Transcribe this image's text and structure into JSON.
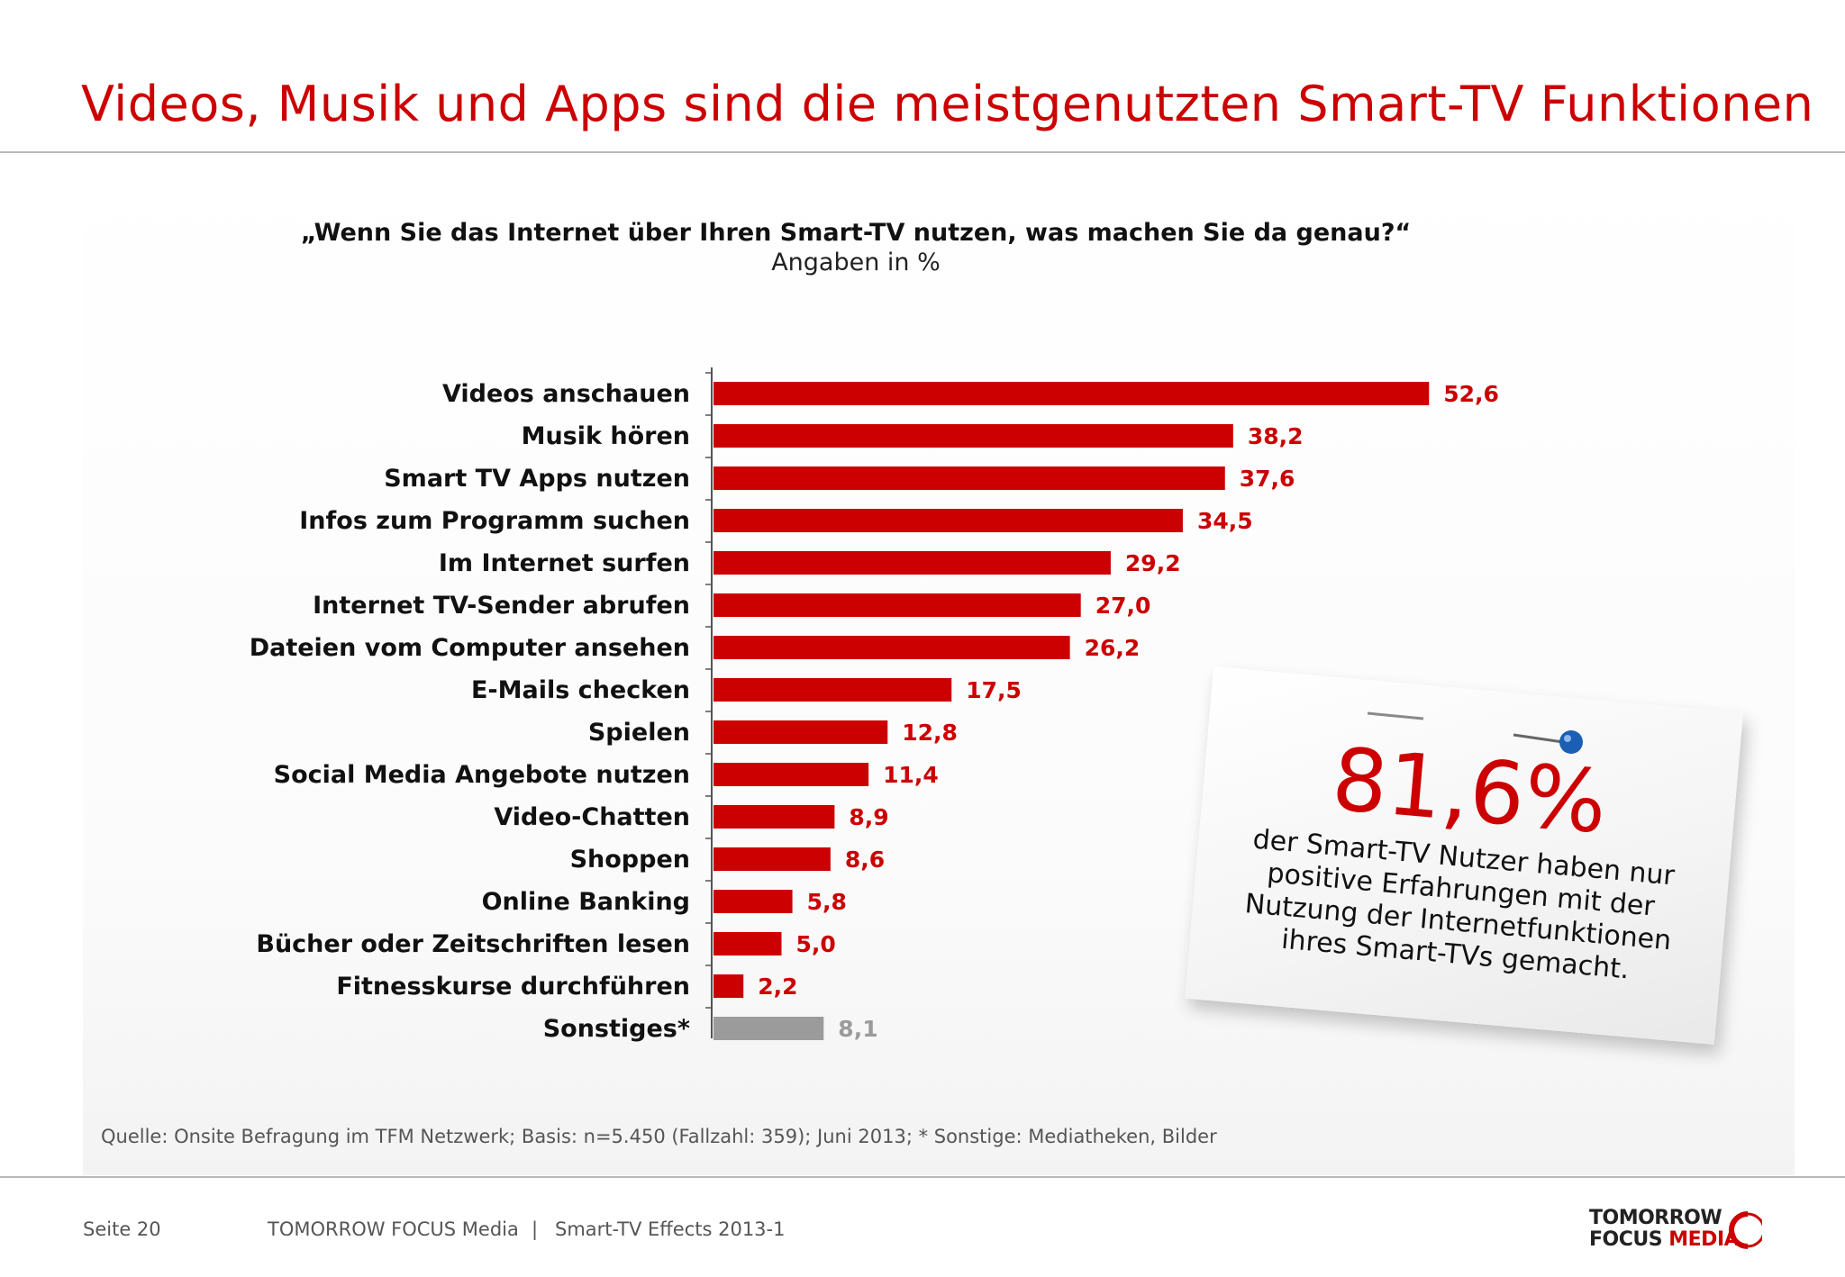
{
  "title": "Videos, Musik und Apps sind die meistgenutzten Smart-TV Funktionen",
  "question": "„Wenn Sie das Internet über Ihren Smart-TV nutzen, was machen Sie da genau?“",
  "unit_label": "Angaben in %",
  "chart_data": {
    "type": "bar",
    "orientation": "horizontal",
    "categories": [
      "Videos anschauen",
      "Musik hören",
      "Smart TV Apps nutzen",
      "Infos zum Programm suchen",
      "Im Internet surfen",
      "Internet TV-Sender abrufen",
      "Dateien vom Computer ansehen",
      "E-Mails checken",
      "Spielen",
      "Social Media Angebote nutzen",
      "Video-Chatten",
      "Shoppen",
      "Online Banking",
      "Bücher oder Zeitschriften lesen",
      "Fitnesskurse durchführen",
      "Sonstiges*"
    ],
    "values": [
      52.6,
      38.2,
      37.6,
      34.5,
      29.2,
      27.0,
      26.2,
      17.5,
      12.8,
      11.4,
      8.9,
      8.6,
      5.8,
      5.0,
      2.2,
      8.1
    ],
    "value_labels": [
      "52,6",
      "38,2",
      "37,6",
      "34,5",
      "29,2",
      "27,0",
      "26,2",
      "17,5",
      "12,8",
      "11,4",
      "8,9",
      "8,6",
      "5,8",
      "5,0",
      "2,2",
      "8,1"
    ],
    "bar_colors": [
      "#cc0000",
      "#cc0000",
      "#cc0000",
      "#cc0000",
      "#cc0000",
      "#cc0000",
      "#cc0000",
      "#cc0000",
      "#cc0000",
      "#cc0000",
      "#cc0000",
      "#cc0000",
      "#cc0000",
      "#cc0000",
      "#cc0000",
      "#9b9b9b"
    ],
    "xlim": [
      0,
      55
    ],
    "grid": false,
    "legend": "none"
  },
  "callout": {
    "big_value": "81,6%",
    "text_lines": [
      "der Smart-TV Nutzer haben nur",
      "positive Erfahrungen mit der",
      "Nutzung der Internetfunktionen",
      "ihres Smart-TVs gemacht."
    ]
  },
  "source": "Quelle: Onsite Befragung im TFM Netzwerk; Basis: n=5.450 (Fallzahl: 359); Juni 2013; * Sonstige: Mediatheken, Bilder",
  "footer": {
    "page": "Seite 20",
    "company": "TOMORROW FOCUS Media",
    "separator": "|",
    "report": "Smart-TV Effects 2013-1"
  },
  "logo": {
    "line1": "TOMORROW",
    "line2a": "FOCUS",
    "line2b": "MEDIA"
  },
  "colors": {
    "accent": "#cc0000",
    "other": "#9b9b9b"
  }
}
